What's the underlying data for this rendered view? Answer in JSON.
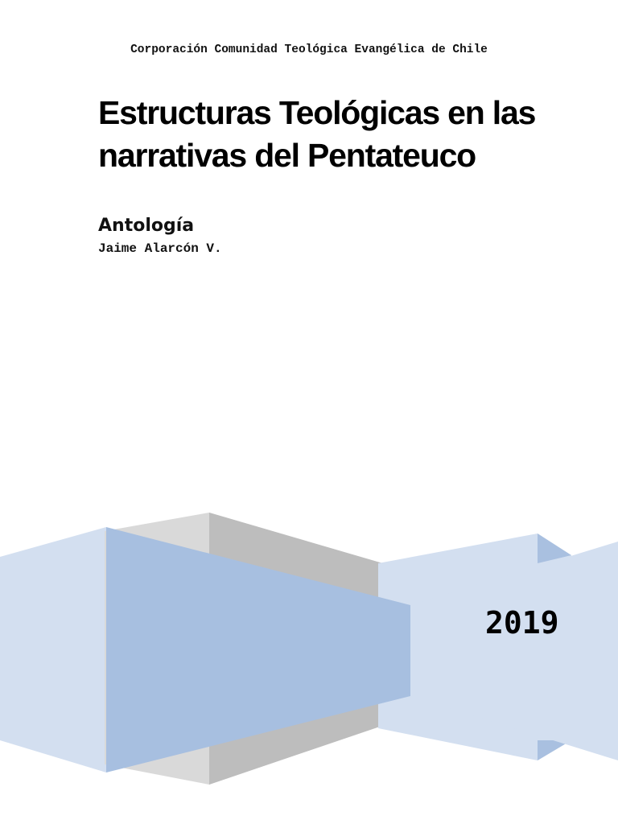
{
  "header": {
    "organization": "Corporación Comunidad Teológica Evangélica de Chile"
  },
  "title": "Estructuras Teológicas en las narrativas del Pentateuco",
  "subtitle": "Antología",
  "author": "Jaime Alarcón V.",
  "year": "2019"
}
